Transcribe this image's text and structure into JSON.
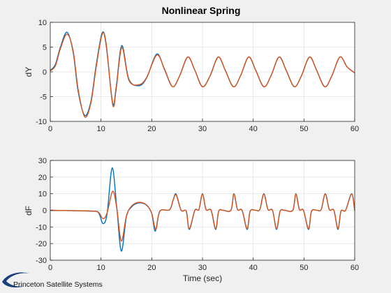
{
  "figure": {
    "title": "Nonlinear Spring",
    "logo_text": "Princeton Satellite Systems",
    "background": "#f0f0f0"
  },
  "chart_data": [
    {
      "type": "line",
      "title": "Nonlinear Spring",
      "xlabel": "",
      "ylabel": "dY",
      "xlim": [
        0,
        60
      ],
      "ylim": [
        -10,
        10
      ],
      "xticks": [
        0,
        10,
        20,
        30,
        40,
        50,
        60
      ],
      "yticks": [
        -10,
        -5,
        0,
        5,
        10
      ],
      "grid": true,
      "series": [
        {
          "color": "#0072BD",
          "x": [
            0,
            1,
            2,
            3.3,
            4.5,
            5.5,
            6.8,
            8,
            9,
            10.2,
            11,
            12.3,
            13,
            14.1,
            15.5,
            17.5,
            19,
            21,
            22.5,
            24.1,
            25.5,
            27.1,
            28.5,
            30,
            31.5,
            33.1,
            34.5,
            36.1,
            37.5,
            39.1,
            40.5,
            42.1,
            43.5,
            45.1,
            46.5,
            48.1,
            49.5,
            51.1,
            52.5,
            54.1,
            55.5,
            57.1,
            58.5,
            60
          ],
          "y": [
            0.3,
            1.5,
            5,
            8,
            4,
            -4,
            -8.8,
            -6,
            1,
            7.8,
            5.5,
            -6.3,
            -3,
            5.3,
            -1.5,
            -2.8,
            -1.2,
            3.6,
            0.5,
            -3,
            -0.8,
            3,
            0.3,
            -3,
            -0.8,
            3,
            0.3,
            -3,
            -0.8,
            3,
            0.3,
            -3,
            -0.8,
            3,
            0.3,
            -3,
            -0.8,
            3,
            0.3,
            -3,
            -0.8,
            3,
            1,
            -0.2
          ]
        },
        {
          "color": "#D95319",
          "x": [
            0,
            1,
            2,
            3.3,
            4.5,
            5.5,
            6.8,
            8,
            9,
            10.2,
            11,
            12.3,
            13,
            14.1,
            15.5,
            17.5,
            19,
            21,
            22.5,
            24.1,
            25.5,
            27.1,
            28.5,
            30,
            31.5,
            33.1,
            34.5,
            36.1,
            37.5,
            39.1,
            40.5,
            42.1,
            43.5,
            45.1,
            46.5,
            48.1,
            49.5,
            51.1,
            52.5,
            54.1,
            55.5,
            57.1,
            58.5,
            60
          ],
          "y": [
            0.2,
            1.2,
            4.7,
            7.6,
            4.3,
            -3.6,
            -9.1,
            -6.3,
            0.6,
            7.5,
            5.8,
            -6.6,
            -3.4,
            4.9,
            -1.7,
            -2.6,
            -1.1,
            3.4,
            0.6,
            -3,
            -0.8,
            3,
            0.3,
            -3,
            -0.8,
            3,
            0.3,
            -3,
            -0.8,
            3,
            0.3,
            -3,
            -0.8,
            3,
            0.3,
            -3,
            -0.8,
            3,
            0.3,
            -3,
            -0.8,
            3,
            1,
            -0.2
          ]
        }
      ]
    },
    {
      "type": "line",
      "title": "",
      "xlabel": "Time (sec)",
      "ylabel": "dF",
      "xlim": [
        0,
        60
      ],
      "ylim": [
        -30,
        30
      ],
      "xticks": [
        0,
        10,
        20,
        30,
        40,
        50,
        60
      ],
      "yticks": [
        -30,
        -20,
        -10,
        0,
        10,
        20,
        30
      ],
      "grid": true,
      "series": [
        {
          "color": "#0072BD",
          "x": [
            0,
            8,
            9.5,
            10.4,
            11.2,
            12.2,
            13.1,
            14,
            15,
            16,
            17.5,
            19,
            20,
            20.7,
            21.6,
            23.5,
            24.2,
            24.8,
            25.8,
            26.8,
            27.4,
            28.5,
            29.3,
            30,
            30.7,
            31.7,
            32.6,
            33.2,
            34.1,
            35.6,
            36.2,
            36.9,
            37.8,
            38.8,
            39.4,
            40.5,
            41.3,
            42.1,
            42.9,
            43.8,
            44.6,
            45.3,
            46.2,
            47.8,
            48.4,
            49.1,
            49.9,
            50.9,
            51.5,
            52.6,
            53.4,
            54.2,
            55,
            55.9,
            56.7,
            57.3,
            58.2,
            59.4,
            60
          ],
          "y": [
            0,
            -0.5,
            -1.5,
            -8,
            -2,
            25.5,
            2,
            -24.5,
            -4,
            2,
            4.5,
            3,
            -2,
            -12.5,
            -0.5,
            0.3,
            6,
            9.8,
            0,
            -0.5,
            -11.5,
            0,
            0.5,
            10,
            0.5,
            0,
            -11.5,
            -0.5,
            0,
            0,
            10,
            0.5,
            0,
            -11.5,
            -0.5,
            0,
            0.5,
            10,
            0.5,
            0,
            -11.5,
            -0.5,
            0,
            0,
            10,
            0.5,
            0,
            -11.5,
            -0.5,
            0,
            0.5,
            10,
            0.5,
            0,
            -11.5,
            -0.5,
            0,
            10,
            0
          ]
        },
        {
          "color": "#D95319",
          "x": [
            0,
            8,
            9.5,
            10.4,
            11.2,
            12.3,
            13.1,
            14,
            15,
            16,
            17.5,
            19,
            20,
            20.8,
            21.6,
            23.5,
            24.2,
            24.8,
            25.8,
            26.8,
            27.4,
            28.5,
            29.3,
            30,
            30.7,
            31.7,
            32.6,
            33.2,
            34.1,
            35.6,
            36.2,
            36.9,
            37.8,
            38.8,
            39.4,
            40.5,
            41.3,
            42.1,
            42.9,
            43.8,
            44.6,
            45.3,
            46.2,
            47.8,
            48.4,
            49.1,
            49.9,
            50.9,
            51.5,
            52.6,
            53.4,
            54.2,
            55,
            55.9,
            56.7,
            57.3,
            58.2,
            59.4,
            60
          ],
          "y": [
            0,
            -0.4,
            -1.2,
            -5,
            -1.5,
            11.5,
            1.5,
            -18.5,
            -3.5,
            2.5,
            4.8,
            3.2,
            -1.8,
            -11.5,
            -0.5,
            0.3,
            6,
            9.3,
            0,
            -0.5,
            -11,
            0,
            0.5,
            9.8,
            0.5,
            0,
            -11,
            -0.5,
            0,
            0,
            9.8,
            0.5,
            0,
            -11,
            -0.5,
            0,
            0.5,
            9.8,
            0.5,
            0,
            -11,
            -0.5,
            0,
            0,
            9.8,
            0.5,
            0,
            -11,
            -0.5,
            0,
            0.5,
            9.8,
            0.5,
            0,
            -11,
            -0.5,
            0,
            9.8,
            0
          ]
        }
      ]
    }
  ]
}
